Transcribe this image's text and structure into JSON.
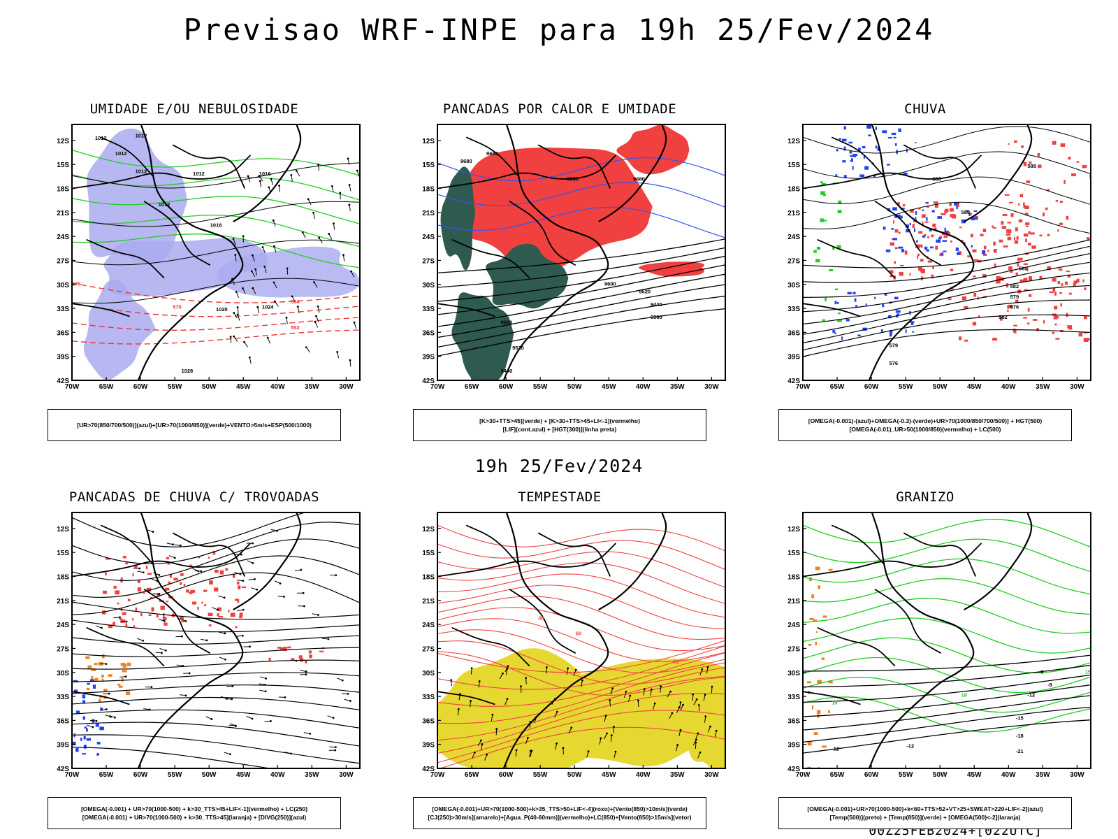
{
  "page": {
    "title": "Previsao WRF-INPE  para 19h 25/Fev/2024",
    "mid_time": "19h 25/Fev/2024",
    "run_info": "00Z25FEB2024+[022UTC]"
  },
  "chart_data": [
    {
      "type": "heatmap",
      "title": "UMIDADE E/OU NEBULOSIDADE",
      "legend_lines": [
        "[UR>70(850/700/500)](azul)+[UR>70(1000/850)](verde)+VENTO>5m/s+ESP(500/1000)"
      ],
      "x_ticks": [
        "70W",
        "65W",
        "60W",
        "55W",
        "50W",
        "45W",
        "40W",
        "35W",
        "30W"
      ],
      "y_ticks": [
        "12S",
        "15S",
        "18S",
        "21S",
        "24S",
        "27S",
        "30S",
        "33S",
        "36S",
        "39S",
        "42S"
      ],
      "xlim": [
        -70,
        -28
      ],
      "ylim": [
        -42,
        -10
      ],
      "contour_labels": [
        "1012",
        "1012",
        "1012",
        "1012",
        "1012",
        "1012",
        "1016",
        "1016",
        "1020",
        "1024",
        "1028",
        "576",
        "570",
        "564",
        "552"
      ],
      "colors": {
        "fill": "#aaaaf0",
        "contour": "#000000",
        "series2": "#22cc22",
        "series3": "#ee3333"
      }
    },
    {
      "type": "heatmap",
      "title": "PANCADAS POR CALOR E UMIDADE",
      "legend_lines": [
        "[K>30+TTS>45](verde) + [K>30+TTS>45+LI<-1](vermelho)",
        "[LIF](cont.azul) + [HGT(300)](linha preta)"
      ],
      "x_ticks": [
        "70W",
        "65W",
        "60W",
        "55W",
        "50W",
        "45W",
        "40W",
        "35W",
        "30W"
      ],
      "y_ticks": [
        "12S",
        "15S",
        "18S",
        "21S",
        "24S",
        "27S",
        "30S",
        "33S",
        "36S",
        "39S",
        "42S"
      ],
      "xlim": [
        -70,
        -28
      ],
      "ylim": [
        -42,
        -10
      ],
      "contour_labels": [
        "9680",
        "9680",
        "9680",
        "9600",
        "9520",
        "9440",
        "9360",
        "9600",
        "9520",
        "9440",
        "9680"
      ],
      "colors": {
        "fill": "#f04040",
        "contour": "#000000",
        "series2": "#2e5a50",
        "series3": "#3355ee"
      }
    },
    {
      "type": "heatmap",
      "title": "CHUVA",
      "legend_lines": [
        "[OMEGA(-0.001)-(azul)+OMEGA(-0.3)-(verde)+UR>70(1000/850/700/500)] + HGT(500)",
        "[OMEGA(-0.01)_UR>50(1000/850)(vermelho) + LC(500)"
      ],
      "x_ticks": [
        "70W",
        "65W",
        "60W",
        "55W",
        "50W",
        "45W",
        "40W",
        "35W",
        "30W"
      ],
      "y_ticks": [
        "12S",
        "15S",
        "18S",
        "21S",
        "24S",
        "27S",
        "30S",
        "33S",
        "36S",
        "39S",
        "42S"
      ],
      "xlim": [
        -70,
        -28
      ],
      "ylim": [
        -42,
        -10
      ],
      "contour_labels": [
        "588",
        "588",
        "588",
        "585",
        "582",
        "579",
        "576",
        "582",
        "579",
        "576"
      ],
      "colors": {
        "fill": "#f04040",
        "contour": "#000000",
        "series2": "#2244ee",
        "series3": "#22cc22"
      }
    },
    {
      "type": "heatmap",
      "title": "PANCADAS DE CHUVA C/ TROVOADAS",
      "legend_lines": [
        "[OMEGA(-0.001) + UR>70(1000-500) + k>30_TTS>45+LIF<-1](vermelho) + LC(250)",
        "[OMEGA(-0.001) + UR>70(1000-500) + k>30_TTS>45](laranja) + [DIVG(250)](azul)"
      ],
      "x_ticks": [
        "70W",
        "65W",
        "60W",
        "55W",
        "50W",
        "45W",
        "40W",
        "35W",
        "30W"
      ],
      "y_ticks": [
        "12S",
        "15S",
        "18S",
        "21S",
        "24S",
        "27S",
        "30S",
        "33S",
        "36S",
        "39S",
        "42S"
      ],
      "xlim": [
        -70,
        -28
      ],
      "ylim": [
        -42,
        -10
      ],
      "contour_labels": [],
      "colors": {
        "fill": "#f04040",
        "contour": "#000000",
        "series2": "#f08020",
        "series3": "#2244ee"
      }
    },
    {
      "type": "heatmap",
      "title": "TEMPESTADE",
      "legend_lines": [
        "[OMEGA(-0.001)+UR>70(1000-500)+k>35_TTS>50+LIF<-4](roxo)+[Vento(850)>10m/s](verde)",
        "[CJ(250)>30m/s](amarelo)+[Agua_P(40-60mm)](vermelho)+LC(850)+[Vento(850)>15m/s](vetor)"
      ],
      "x_ticks": [
        "70W",
        "65W",
        "60W",
        "55W",
        "50W",
        "45W",
        "40W",
        "35W",
        "30W"
      ],
      "y_ticks": [
        "12S",
        "15S",
        "18S",
        "21S",
        "24S",
        "27S",
        "30S",
        "33S",
        "36S",
        "39S",
        "42S"
      ],
      "xlim": [
        -70,
        -28
      ],
      "ylim": [
        -42,
        -10
      ],
      "contour_labels": [
        "40",
        "50",
        "30"
      ],
      "colors": {
        "fill": "#e6d830",
        "contour": "#ee4444",
        "series2": "#000000",
        "series3": "#22cc22"
      }
    },
    {
      "type": "heatmap",
      "title": "GRANIZO",
      "legend_lines": [
        "[OMEGA(-0.001)+UR>70(1000-500)+k<60+TTS>52+VT>25+SWEAT>220+LIF<-2](azul)",
        "[Temp(500)](preto) + [Temp(850)](verde) + [OMEGA(500)<-2](laranja)"
      ],
      "x_ticks": [
        "70W",
        "65W",
        "60W",
        "55W",
        "50W",
        "45W",
        "40W",
        "35W",
        "30W"
      ],
      "y_ticks": [
        "12S",
        "15S",
        "18S",
        "21S",
        "24S",
        "27S",
        "30S",
        "33S",
        "36S",
        "39S",
        "42S"
      ],
      "xlim": [
        -70,
        -28
      ],
      "ylim": [
        -42,
        -10
      ],
      "contour_labels": [
        "-6",
        "-9",
        "-12",
        "-15",
        "-18",
        "-21",
        "-12",
        "-12",
        "15",
        "18",
        "15"
      ],
      "colors": {
        "fill": "#ffffff",
        "contour": "#000000",
        "series2": "#22cc22",
        "series3": "#f08020"
      }
    }
  ]
}
